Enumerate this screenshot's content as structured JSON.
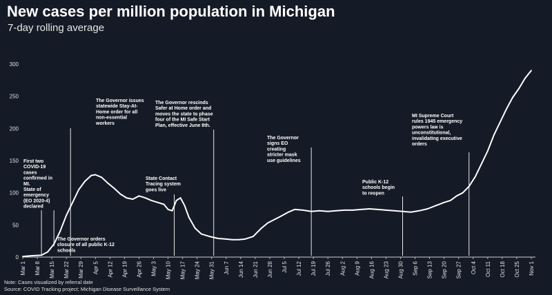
{
  "header": {
    "title": "New cases per million population in Michigan",
    "subtitle": "7-day rolling average"
  },
  "footer": {
    "note": "Note: Cases visualized by referral date",
    "source": "Source: COVID Tracking project; Michigan Disease Surveillance System"
  },
  "colors": {
    "background": "#151b26",
    "line": "#ffffff",
    "axis": "#cfcfcf"
  },
  "chart_data": {
    "type": "line",
    "title": "New cases per million population in Michigan",
    "subtitle": "7-day rolling average",
    "ylim": [
      0,
      300
    ],
    "y_ticks": [
      0,
      50,
      100,
      150,
      200,
      250,
      300
    ],
    "grid": false,
    "x_tick_labels": [
      "Mar 1",
      "Mar 8",
      "Mar 15",
      "Mar 22",
      "Mar 29",
      "Apr 5",
      "Apr 12",
      "Apr 19",
      "Apr 26",
      "May 3",
      "May 10",
      "May 17",
      "May 24",
      "May 31",
      "Jun 7",
      "Jun 14",
      "Jun 21",
      "Jun 28",
      "Jul 5",
      "Jul 12",
      "Jul 19",
      "Jul 26",
      "Aug 2",
      "Aug 9",
      "Aug 16",
      "Aug 23",
      "Aug 30",
      "Sep 6",
      "Sep 13",
      "Sep 20",
      "Sep 27",
      "Oct 4",
      "Oct 11",
      "Oct 18",
      "Oct 25",
      "Nov 1"
    ],
    "series": [
      {
        "x": [
          "Mar 1",
          "Mar 5",
          "Mar 10",
          "Mar 13",
          "Mar 16",
          "Mar 19",
          "Mar 22",
          "Mar 25",
          "Mar 28",
          "Mar 31",
          "Apr 3",
          "Apr 5",
          "Apr 8",
          "Apr 11",
          "Apr 14",
          "Apr 17",
          "Apr 20",
          "Apr 23",
          "Apr 26",
          "Apr 29",
          "May 2",
          "May 5",
          "May 8",
          "May 10",
          "May 12",
          "May 14",
          "May 16",
          "May 18",
          "May 20",
          "May 23",
          "May 26",
          "May 30",
          "Jun 3",
          "Jun 7",
          "Jun 10",
          "Jun 13",
          "Jun 16",
          "Jun 20",
          "Jun 24",
          "Jun 27",
          "Jun 30",
          "Jul 3",
          "Jul 7",
          "Jul 10",
          "Jul 14",
          "Jul 18",
          "Jul 22",
          "Jul 26",
          "Jul 30",
          "Aug 3",
          "Aug 7",
          "Aug 11",
          "Aug 15",
          "Aug 19",
          "Aug 23",
          "Aug 27",
          "Aug 31",
          "Sep 4",
          "Sep 8",
          "Sep 12",
          "Sep 16",
          "Sep 20",
          "Sep 23",
          "Sep 26",
          "Sep 29",
          "Oct 2",
          "Oct 5",
          "Oct 8",
          "Oct 11",
          "Oct 14",
          "Oct 17",
          "Oct 20",
          "Oct 23",
          "Oct 26",
          "Oct 29",
          "Nov 1"
        ],
        "values": [
          1,
          2,
          3,
          8,
          20,
          40,
          65,
          85,
          105,
          118,
          127,
          128,
          124,
          115,
          107,
          98,
          92,
          90,
          95,
          92,
          88,
          85,
          82,
          74,
          72,
          88,
          92,
          80,
          62,
          45,
          36,
          32,
          29,
          28,
          27,
          27,
          28,
          32,
          45,
          53,
          58,
          63,
          70,
          74,
          73,
          71,
          72,
          71,
          72,
          73,
          73,
          74,
          75,
          74,
          73,
          72,
          71,
          70,
          72,
          75,
          80,
          85,
          88,
          95,
          100,
          110,
          125,
          145,
          165,
          190,
          210,
          230,
          248,
          262,
          278,
          290
        ]
      }
    ],
    "annotations": [
      {
        "date": "Mar 10",
        "lines": [
          "First two",
          "COVID-19",
          "cases",
          "confirmed in",
          "MI.",
          "State of",
          "emergency",
          "(EO 2020-4)",
          "declared"
        ]
      },
      {
        "date": "Mar 24",
        "lines": [
          "The Governor issues",
          "statewide Stay-At-",
          "Home order for all",
          "non-essential",
          "workers"
        ]
      },
      {
        "date": "Mar 16",
        "lines": [
          "The Governor orders",
          "closure of all public K-12",
          "schools"
        ]
      },
      {
        "date": "May 13",
        "lines": [
          "State Contact",
          "Tracing system",
          "goes live"
        ]
      },
      {
        "date": "Jun 1",
        "lines": [
          "The Governor rescinds",
          "Safer at Home order and",
          "moves the state to phase",
          "four of the MI Safe Start",
          "Plan, effective June 8th."
        ]
      },
      {
        "date": "Jul 18",
        "lines": [
          "The Governor",
          "signs EO",
          "creating",
          "stricter mask",
          "use guidelines"
        ]
      },
      {
        "date": "Aug 31",
        "lines": [
          "Public K-12",
          "schools begin",
          "to reopen"
        ]
      },
      {
        "date": "Oct 2",
        "lines": [
          "MI Supreme Court",
          "rules 1945 emergency",
          "powers law is",
          "unconstitutional,",
          "invalidating executive",
          "orders"
        ]
      }
    ]
  }
}
